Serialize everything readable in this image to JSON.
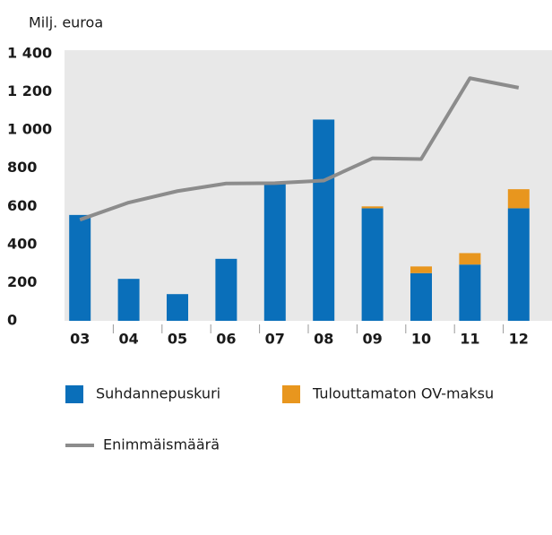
{
  "chart_data": {
    "type": "bar",
    "y_label": "Milj. euroa",
    "categories": [
      "03",
      "04",
      "05",
      "06",
      "07",
      "08",
      "09",
      "10",
      "11",
      "12"
    ],
    "series": [
      {
        "name": "Suhdannepuskuri",
        "color": "#0a6fba",
        "values": [
          555,
          220,
          140,
          325,
          730,
          1055,
          590,
          250,
          295,
          590
        ]
      },
      {
        "name": "Tulouttamaton OV-maksu",
        "color": "#e8961e",
        "values": [
          0,
          0,
          0,
          0,
          0,
          0,
          10,
          35,
          60,
          100
        ]
      },
      {
        "name": "Enimmäismäärä",
        "color": "#8c8c8c",
        "type": "line",
        "values": [
          530,
          620,
          680,
          720,
          722,
          735,
          852,
          848,
          1272,
          1222
        ]
      }
    ],
    "ylim": [
      0,
      1400
    ],
    "yticks": [
      0,
      200,
      400,
      600,
      800,
      {
        "value": 1000,
        "label": "1 000"
      },
      {
        "value": 1200,
        "label": "1 200"
      },
      {
        "value": 1400,
        "label": "1 400"
      }
    ]
  }
}
